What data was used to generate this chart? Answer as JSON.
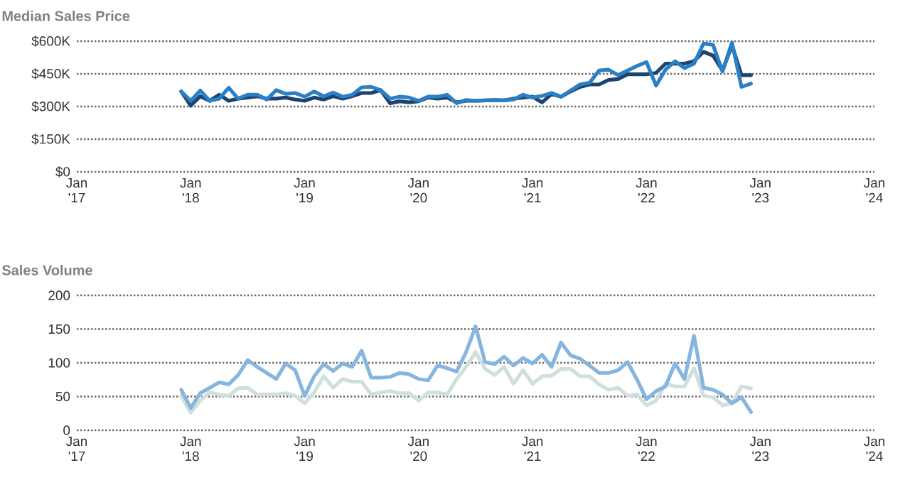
{
  "chart_data": [
    {
      "type": "line",
      "title": "Median Sales Price",
      "x": [
        "2017-12",
        "2018-01",
        "2018-02",
        "2018-03",
        "2018-04",
        "2018-05",
        "2018-06",
        "2018-07",
        "2018-08",
        "2018-09",
        "2018-10",
        "2018-11",
        "2018-12",
        "2019-01",
        "2019-02",
        "2019-03",
        "2019-04",
        "2019-05",
        "2019-06",
        "2019-07",
        "2019-08",
        "2019-09",
        "2019-10",
        "2019-11",
        "2019-12",
        "2020-01",
        "2020-02",
        "2020-03",
        "2020-04",
        "2020-05",
        "2020-06",
        "2020-07",
        "2020-08",
        "2020-09",
        "2020-10",
        "2020-11",
        "2020-12",
        "2021-01",
        "2021-02",
        "2021-03",
        "2021-04",
        "2021-05",
        "2021-06",
        "2021-07",
        "2021-08",
        "2021-09",
        "2021-10",
        "2021-11",
        "2021-12",
        "2022-01",
        "2022-02",
        "2022-03",
        "2022-04",
        "2022-05",
        "2022-06",
        "2022-07",
        "2022-08",
        "2022-09",
        "2022-10",
        "2022-11",
        "2022-12"
      ],
      "series": [
        {
          "color": "#1d4470",
          "values": [
            369000,
            304000,
            347000,
            326000,
            354000,
            326000,
            336000,
            341000,
            347000,
            336000,
            336000,
            341000,
            332000,
            326000,
            341000,
            332000,
            347000,
            336000,
            347000,
            362000,
            362000,
            375000,
            315000,
            324000,
            319000,
            324000,
            341000,
            336000,
            341000,
            319000,
            326000,
            326000,
            328000,
            330000,
            328000,
            336000,
            341000,
            345000,
            319000,
            358000,
            345000,
            369000,
            390000,
            401000,
            401000,
            422000,
            426000,
            448000,
            448000,
            448000,
            454000,
            497000,
            497000,
            497000,
            508000,
            551000,
            534000,
            465000,
            581000,
            444000,
            444000
          ]
        },
        {
          "color": "#2b7fc4",
          "values": [
            369000,
            326000,
            373000,
            326000,
            336000,
            386000,
            336000,
            354000,
            354000,
            332000,
            375000,
            358000,
            362000,
            345000,
            369000,
            347000,
            364000,
            345000,
            354000,
            388000,
            390000,
            375000,
            336000,
            345000,
            341000,
            326000,
            345000,
            345000,
            354000,
            315000,
            330000,
            326000,
            328000,
            328000,
            328000,
            332000,
            354000,
            341000,
            349000,
            362000,
            345000,
            373000,
            401000,
            409000,
            465000,
            469000,
            444000,
            465000,
            486000,
            504000,
            396000,
            469000,
            508000,
            476000,
            497000,
            589000,
            583000,
            461000,
            594000,
            390000,
            405000
          ]
        }
      ],
      "xlim": [
        "2017-01",
        "2024-01"
      ],
      "xticks": [
        {
          "value": "2017-01",
          "label": "Jan '17"
        },
        {
          "value": "2018-01",
          "label": "Jan '18"
        },
        {
          "value": "2019-01",
          "label": "Jan '19"
        },
        {
          "value": "2020-01",
          "label": "Jan '20"
        },
        {
          "value": "2021-01",
          "label": "Jan '21"
        },
        {
          "value": "2022-01",
          "label": "Jan '22"
        },
        {
          "value": "2023-01",
          "label": "Jan '23"
        },
        {
          "value": "2024-01",
          "label": "Jan '24"
        }
      ],
      "ylim": [
        0,
        600000
      ],
      "yticks": [
        {
          "value": 0,
          "label": "$0"
        },
        {
          "value": 150000,
          "label": "$150K"
        },
        {
          "value": 300000,
          "label": "$300K"
        },
        {
          "value": 450000,
          "label": "$450K"
        },
        {
          "value": 600000,
          "label": "$600K"
        }
      ],
      "grid": "y"
    },
    {
      "type": "line",
      "title": "Sales Volume",
      "x": [
        "2017-12",
        "2018-01",
        "2018-02",
        "2018-03",
        "2018-04",
        "2018-05",
        "2018-06",
        "2018-07",
        "2018-08",
        "2018-09",
        "2018-10",
        "2018-11",
        "2018-12",
        "2019-01",
        "2019-02",
        "2019-03",
        "2019-04",
        "2019-05",
        "2019-06",
        "2019-07",
        "2019-08",
        "2019-09",
        "2019-10",
        "2019-11",
        "2019-12",
        "2020-01",
        "2020-02",
        "2020-03",
        "2020-04",
        "2020-05",
        "2020-06",
        "2020-07",
        "2020-08",
        "2020-09",
        "2020-10",
        "2020-11",
        "2020-12",
        "2021-01",
        "2021-02",
        "2021-03",
        "2021-04",
        "2021-05",
        "2021-06",
        "2021-07",
        "2021-08",
        "2021-09",
        "2021-10",
        "2021-11",
        "2021-12",
        "2022-01",
        "2022-02",
        "2022-03",
        "2022-04",
        "2022-05",
        "2022-06",
        "2022-07",
        "2022-08",
        "2022-09",
        "2022-10",
        "2022-11",
        "2022-12"
      ],
      "series": [
        {
          "color": "#cfe0dc",
          "values": [
            51,
            26,
            44,
            56,
            53,
            51,
            62,
            63,
            53,
            53,
            53,
            55,
            51,
            40,
            56,
            80,
            63,
            76,
            72,
            72,
            53,
            56,
            58,
            55,
            55,
            44,
            56,
            56,
            53,
            76,
            94,
            116,
            91,
            82,
            94,
            69,
            89,
            69,
            80,
            81,
            91,
            91,
            80,
            80,
            68,
            60,
            63,
            51,
            53,
            37,
            44,
            69,
            65,
            65,
            92,
            51,
            49,
            37,
            40,
            65,
            62
          ]
        },
        {
          "color": "#86b6e0",
          "values": [
            60,
            33,
            55,
            63,
            71,
            68,
            82,
            104,
            94,
            85,
            76,
            99,
            89,
            51,
            80,
            98,
            88,
            99,
            94,
            118,
            78,
            78,
            79,
            85,
            83,
            76,
            74,
            96,
            92,
            87,
            116,
            154,
            101,
            98,
            109,
            96,
            107,
            99,
            112,
            94,
            130,
            111,
            106,
            96,
            85,
            85,
            89,
            101,
            75,
            46,
            58,
            65,
            99,
            76,
            140,
            63,
            60,
            53,
            40,
            49,
            27
          ]
        }
      ],
      "xlim": [
        "2017-01",
        "2024-01"
      ],
      "xticks": [
        {
          "value": "2017-01",
          "label": "Jan '17"
        },
        {
          "value": "2018-01",
          "label": "Jan '18"
        },
        {
          "value": "2019-01",
          "label": "Jan '19"
        },
        {
          "value": "2020-01",
          "label": "Jan '20"
        },
        {
          "value": "2021-01",
          "label": "Jan '21"
        },
        {
          "value": "2022-01",
          "label": "Jan '22"
        },
        {
          "value": "2023-01",
          "label": "Jan '23"
        },
        {
          "value": "2024-01",
          "label": "Jan '24"
        }
      ],
      "ylim": [
        0,
        200
      ],
      "yticks": [
        0,
        50,
        100,
        150,
        200
      ],
      "grid": "y"
    }
  ]
}
